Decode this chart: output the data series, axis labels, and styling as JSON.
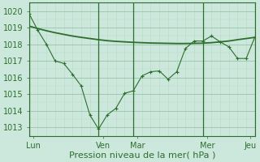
{
  "line1_x": [
    0,
    1,
    2,
    3,
    4,
    5,
    6,
    7,
    8,
    9,
    10,
    11,
    12,
    13,
    14,
    15,
    16,
    17,
    18,
    19,
    20,
    21,
    22,
    23,
    24,
    25,
    26
  ],
  "line1_y": [
    1019.85,
    1018.85,
    1018.0,
    1017.0,
    1016.85,
    1016.2,
    1015.5,
    1013.75,
    1012.9,
    1013.75,
    1014.15,
    1015.05,
    1015.2,
    1016.1,
    1016.35,
    1016.4,
    1015.9,
    1016.35,
    1017.75,
    1018.2,
    1018.2,
    1018.5,
    1018.15,
    1017.85,
    1017.15,
    1017.15,
    1018.45
  ],
  "line2_x": [
    0,
    1,
    2,
    3,
    4,
    5,
    6,
    7,
    8,
    9,
    10,
    11,
    12,
    13,
    14,
    15,
    16,
    17,
    18,
    19,
    20,
    21,
    22,
    23,
    24,
    25,
    26
  ],
  "line2_y": [
    1019.1,
    1018.95,
    1018.82,
    1018.7,
    1018.6,
    1018.5,
    1018.42,
    1018.35,
    1018.28,
    1018.22,
    1018.18,
    1018.15,
    1018.12,
    1018.1,
    1018.08,
    1018.07,
    1018.06,
    1018.05,
    1018.05,
    1018.06,
    1018.07,
    1018.1,
    1018.15,
    1018.2,
    1018.28,
    1018.35,
    1018.42
  ],
  "xtick_positions": [
    0.5,
    8.5,
    12.5,
    20.5,
    25.5
  ],
  "xtick_labels": [
    "Lun",
    "Ven",
    "Mar",
    "Mer",
    "Jeu"
  ],
  "vline_positions": [
    0,
    8,
    12,
    20,
    26
  ],
  "grid_x_minor": [
    1,
    2,
    3,
    4,
    5,
    6,
    7,
    9,
    10,
    11,
    13,
    14,
    15,
    16,
    17,
    18,
    19,
    21,
    22,
    23,
    24,
    25
  ],
  "ylim": [
    1012.5,
    1020.5
  ],
  "xlim": [
    0,
    26
  ],
  "yticks": [
    1013,
    1014,
    1015,
    1016,
    1017,
    1018,
    1019,
    1020
  ],
  "line_color": "#2d6e2d",
  "bg_color": "#cce8dc",
  "grid_major_color": "#99c4aa",
  "grid_minor_color": "#b8d8c4",
  "vline_color": "#2d6e2d",
  "xlabel": "Pression niveau de la mer( hPa )",
  "xlabel_fontsize": 8,
  "tick_fontsize": 7,
  "figsize": [
    3.2,
    2.0
  ],
  "dpi": 100
}
